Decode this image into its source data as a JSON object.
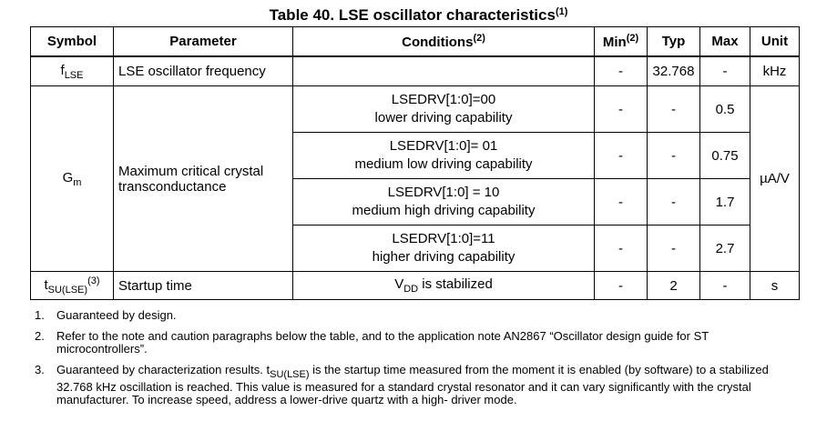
{
  "title": {
    "text": "Table 40. LSE oscillator characteristics",
    "footnote_ref": "(1)"
  },
  "table": {
    "headers": {
      "symbol": "Symbol",
      "parameter": "Parameter",
      "conditions": "Conditions",
      "conditions_ref": "(2)",
      "min": "Min",
      "min_ref": "(2)",
      "typ": "Typ",
      "max": "Max",
      "unit": "Unit"
    },
    "flse": {
      "symbol_main": "f",
      "symbol_sub": "LSE",
      "parameter": "LSE oscillator frequency",
      "conditions": "",
      "min": "-",
      "typ": "32.768",
      "max": "-",
      "unit": "kHz"
    },
    "gm": {
      "symbol_main": "G",
      "symbol_sub": "m",
      "parameter_line1": "Maximum critical crystal",
      "parameter_line2": "transconductance",
      "unit": "µA/V",
      "rows": [
        {
          "cond_line1": "LSEDRV[1:0]=00",
          "cond_line2": "lower driving capability",
          "min": "-",
          "typ": "-",
          "max": "0.5"
        },
        {
          "cond_line1": "LSEDRV[1:0]= 01",
          "cond_line2": "medium low driving capability",
          "min": "-",
          "typ": "-",
          "max": "0.75"
        },
        {
          "cond_line1": "LSEDRV[1:0] = 10",
          "cond_line2": "medium high driving capability",
          "min": "-",
          "typ": "-",
          "max": "1.7"
        },
        {
          "cond_line1": "LSEDRV[1:0]=11",
          "cond_line2": "higher driving capability",
          "min": "-",
          "typ": "-",
          "max": "2.7"
        }
      ]
    },
    "tsu": {
      "symbol_main": "t",
      "symbol_sub": "SU(LSE)",
      "symbol_ref": "(3)",
      "parameter": "Startup time",
      "cond_main": "V",
      "cond_sub": "DD",
      "cond_rest": " is stabilized",
      "min": "-",
      "typ": "2",
      "max": "-",
      "unit": "s"
    }
  },
  "notes": [
    {
      "num": "1.",
      "text": "Guaranteed by design."
    },
    {
      "num": "2.",
      "text": "Refer to the note and caution paragraphs below the table, and to the application note AN2867 “Oscillator design guide for ST microcontrollers”."
    },
    {
      "num": "3.",
      "text_before": "Guaranteed by characterization results. t",
      "text_sub": "SU(LSE)",
      "text_after": " is the startup time measured from the moment it is enabled (by software) to a stabilized 32.768 kHz oscillation is reached. This value is measured for a standard crystal resonator and it can vary significantly with the crystal manufacturer. To increase speed, address a lower-drive quartz with a high- driver mode."
    }
  ]
}
